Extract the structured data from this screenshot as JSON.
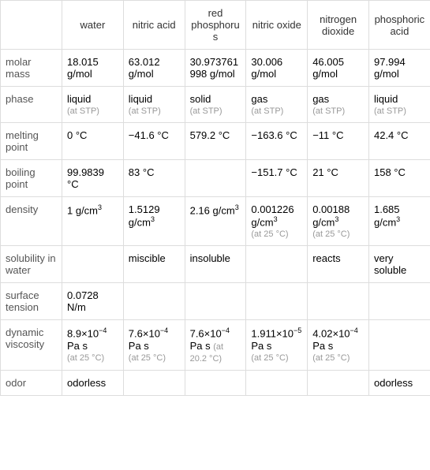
{
  "columns": [
    "water",
    "nitric acid",
    "red phosphorus",
    "nitric oxide",
    "nitrogen dioxide",
    "phosphoric acid"
  ],
  "rows": {
    "molar_mass": {
      "label": "molar mass",
      "values": [
        "18.015 g/mol",
        "63.012 g/mol",
        "30.973761998 g/mol",
        "30.006 g/mol",
        "46.005 g/mol",
        "97.994 g/mol"
      ]
    },
    "phase": {
      "label": "phase",
      "values": [
        "liquid",
        "liquid",
        "solid",
        "gas",
        "gas",
        "liquid"
      ],
      "subs": [
        "(at STP)",
        "(at STP)",
        "(at STP)",
        "(at STP)",
        "(at STP)",
        "(at STP)"
      ]
    },
    "melting_point": {
      "label": "melting point",
      "values": [
        "0 °C",
        "−41.6 °C",
        "579.2 °C",
        "−163.6 °C",
        "−11 °C",
        "42.4 °C"
      ]
    },
    "boiling_point": {
      "label": "boiling point",
      "values": [
        "99.9839 °C",
        "83 °C",
        "",
        "−151.7 °C",
        "21 °C",
        "158 °C"
      ]
    },
    "density": {
      "label": "density",
      "values": [
        "1 g/cm",
        "1.5129 g/cm",
        "2.16 g/cm",
        "0.001226 g/cm",
        "0.00188 g/cm",
        "1.685 g/cm"
      ],
      "sup": [
        "3",
        "3",
        "3",
        "3",
        "3",
        "3"
      ],
      "subs": [
        "",
        "",
        "",
        "(at 25 °C)",
        "(at 25 °C)",
        ""
      ]
    },
    "solubility": {
      "label": "solubility in water",
      "values": [
        "",
        "miscible",
        "insoluble",
        "",
        "reacts",
        "very soluble"
      ]
    },
    "surface_tension": {
      "label": "surface tension",
      "values": [
        "0.0728 N/m",
        "",
        "",
        "",
        "",
        ""
      ]
    },
    "dynamic_viscosity": {
      "label": "dynamic viscosity",
      "prefix": [
        "8.9×10",
        "7.6×10",
        "7.6×10",
        "1.911×10",
        "4.02×10",
        ""
      ],
      "exp": [
        "−4",
        "−4",
        "−4",
        "−5",
        "−4",
        ""
      ],
      "suffix": [
        " Pa s",
        " Pa s",
        " Pa s",
        " Pa s",
        " Pa s",
        ""
      ],
      "subs": [
        "(at 25 °C)",
        "(at 25 °C)",
        "(at 20.2 °C)",
        "(at 25 °C)",
        "(at 25 °C)",
        ""
      ]
    },
    "odor": {
      "label": "odor",
      "values": [
        "odorless",
        "",
        "",
        "",
        "",
        "odorless"
      ]
    }
  }
}
